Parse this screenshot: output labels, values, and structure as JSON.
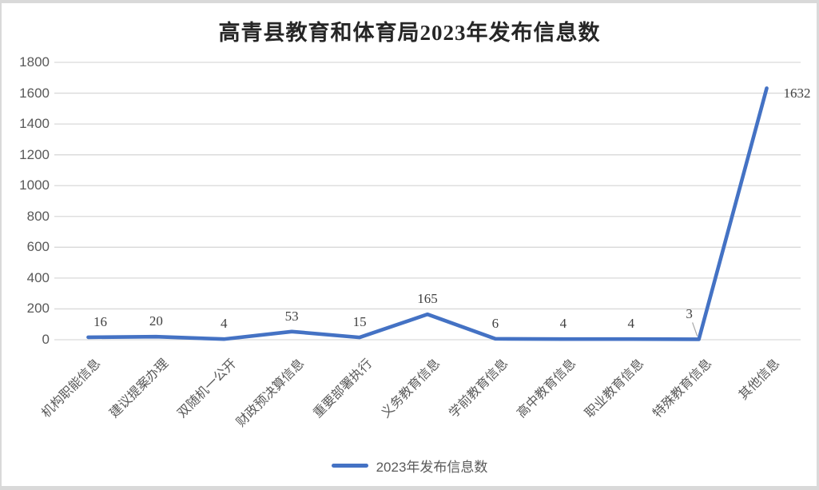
{
  "chart": {
    "title": "高青县教育和体育局2023年发布信息数"
  },
  "legend": {
    "label": "2023年发布信息数"
  },
  "colors": {
    "series": "#4472C4",
    "gridline": "#D9D9D9",
    "axis_text": "#595959",
    "data_label": "#404040",
    "title_text": "#262626",
    "leader_line": "#A6A6A6",
    "frame_border": "#D9D9D9"
  },
  "chart_data": {
    "type": "line",
    "title": "高青县教育和体育局2023年发布信息数",
    "categories": [
      "机构职能信息",
      "建议提案办理",
      "双随机一公开",
      "财政预决算信息",
      "重要部署执行",
      "义务教育信息",
      "学前教育信息",
      "高中教育信息",
      "职业教育信息",
      "特殊教育信息",
      "其他信息"
    ],
    "series": [
      {
        "name": "2023年发布信息数",
        "values": [
          16,
          20,
          4,
          53,
          15,
          165,
          6,
          4,
          4,
          3,
          1632
        ]
      }
    ],
    "xlabel": "",
    "ylabel": "",
    "ylim": [
      0,
      1800
    ],
    "yticks": [
      0,
      200,
      400,
      600,
      800,
      1000,
      1200,
      1400,
      1600,
      1800
    ],
    "grid": true,
    "legend_position": "bottom",
    "data_labels": true,
    "layout": {
      "label_offsets": {
        "0": {
          "dx": 15,
          "dy": -19
        },
        "9": {
          "dx": -12,
          "dy": -31,
          "leader": true
        },
        "10": {
          "dx": 38,
          "dy": 7
        }
      }
    }
  }
}
